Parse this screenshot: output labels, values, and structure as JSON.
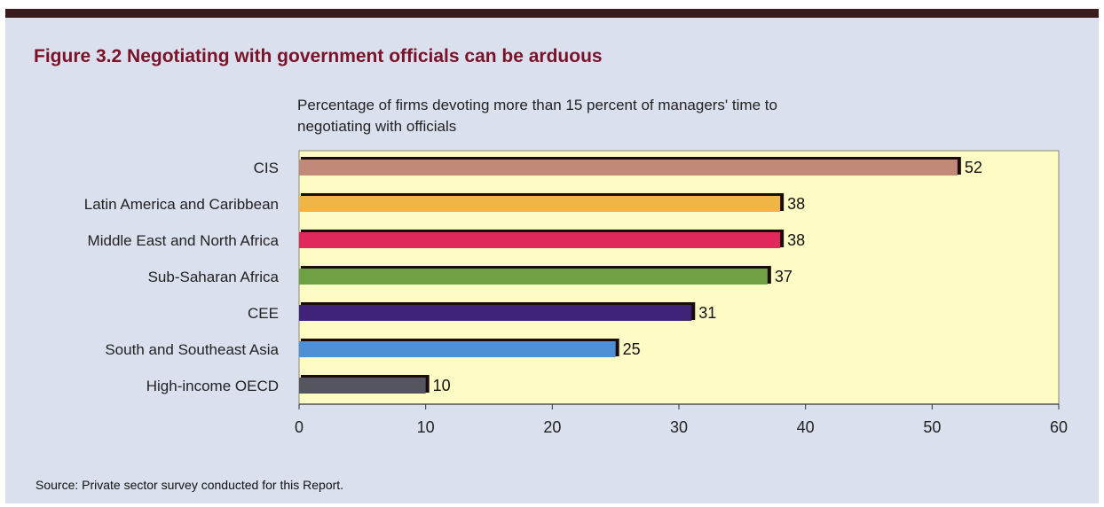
{
  "figure": {
    "title": "Figure 3.2  Negotiating with government officials can be arduous",
    "subtitle": "Percentage of firms devoting more than 15 percent of managers' time to negotiating with officials",
    "source": "Source: Private sector survey conducted for this Report."
  },
  "colors": {
    "panel_background": "#dbe0ef",
    "plot_background": "#fffbc4",
    "title_color": "#7a1228",
    "bar_outline": "#1a0c0c"
  },
  "chart_data": {
    "type": "bar",
    "orientation": "horizontal",
    "title": "Figure 3.2  Negotiating with government officials can be arduous",
    "subtitle": "Percentage of firms devoting more than 15 percent of managers' time to negotiating with officials",
    "xlabel": "",
    "ylabel": "",
    "xlim": [
      0,
      60
    ],
    "x_ticks": [
      0,
      10,
      20,
      30,
      40,
      50,
      60
    ],
    "grid": false,
    "legend": "none",
    "categories": [
      "CIS",
      "Latin America and Caribbean",
      "Middle East and North Africa",
      "Sub-Saharan Africa",
      "CEE",
      "South and Southeast Asia",
      "High-income OECD"
    ],
    "values": [
      52,
      38,
      38,
      37,
      31,
      25,
      10
    ],
    "data_labels": [
      "52",
      "38",
      "38",
      "37",
      "31",
      "25",
      "10"
    ],
    "bar_colors": [
      "#c18a78",
      "#f0b545",
      "#e0285a",
      "#6fa043",
      "#3f2378",
      "#4f8fd6",
      "#555560"
    ]
  }
}
